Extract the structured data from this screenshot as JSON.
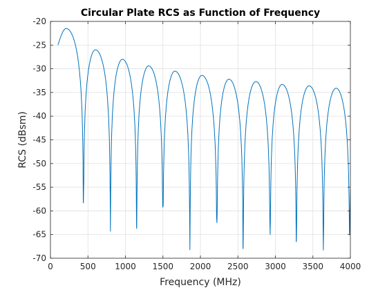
{
  "chart_data": {
    "type": "line",
    "title": "Circular Plate RCS as Function of Frequency",
    "xlabel": "Frequency (MHz)",
    "ylabel": "RCS (dBsm)",
    "xlim": [
      0,
      4000
    ],
    "ylim": [
      -70,
      -20
    ],
    "xticks": [
      0,
      500,
      1000,
      1500,
      2000,
      2500,
      3000,
      3500,
      4000
    ],
    "yticks": [
      -20,
      -25,
      -30,
      -35,
      -40,
      -45,
      -50,
      -55,
      -60,
      -65,
      -70
    ],
    "grid": true,
    "line_color": "#0072bd",
    "series": [
      {
        "peaks": [
          {
            "x": 210,
            "y": -21.5
          },
          {
            "x": 600,
            "y": -26.0
          },
          {
            "x": 960,
            "y": -28.0
          },
          {
            "x": 1310,
            "y": -29.4
          },
          {
            "x": 1660,
            "y": -30.5
          },
          {
            "x": 2020,
            "y": -31.4
          },
          {
            "x": 2380,
            "y": -32.2
          },
          {
            "x": 2740,
            "y": -32.7
          },
          {
            "x": 3090,
            "y": -33.3
          },
          {
            "x": 3450,
            "y": -33.6
          },
          {
            "x": 3810,
            "y": -34.1
          }
        ],
        "nulls": [
          {
            "x": 440,
            "y": -58.3
          },
          {
            "x": 800,
            "y": -64.3
          },
          {
            "x": 1150,
            "y": -63.7
          },
          {
            "x": 1500,
            "y": -59.2
          },
          {
            "x": 1860,
            "y": -68.2
          },
          {
            "x": 2220,
            "y": -62.5
          },
          {
            "x": 2570,
            "y": -68.0
          },
          {
            "x": 2930,
            "y": -65.0
          },
          {
            "x": 3280,
            "y": -66.5
          },
          {
            "x": 3640,
            "y": -68.3
          },
          {
            "x": 3990,
            "y": -65.0
          }
        ],
        "start": {
          "x": 100,
          "y": -25.0
        },
        "end": {
          "x": 4000,
          "y": -55.5
        }
      }
    ]
  }
}
